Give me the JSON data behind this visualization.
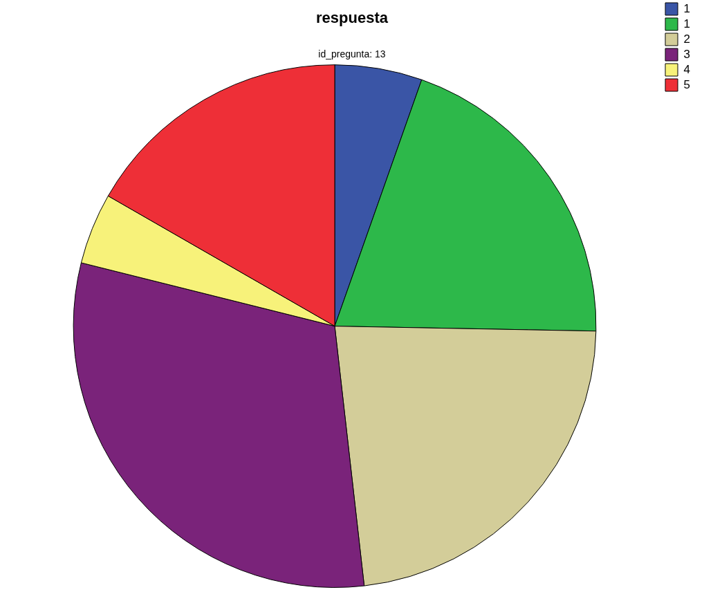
{
  "chart_data": {
    "type": "pie",
    "title": "respuesta",
    "subtitle": "id_pregunta: 13",
    "categories": [
      "1",
      "1",
      "2",
      "3",
      "4",
      "5"
    ],
    "values": [
      5.4,
      19.9,
      22.9,
      30.7,
      4.4,
      16.7
    ],
    "colors": [
      "#3a55a6",
      "#2db84a",
      "#d3cd99",
      "#7a237a",
      "#f7f27a",
      "#ee2f37"
    ],
    "legend": "top right"
  }
}
